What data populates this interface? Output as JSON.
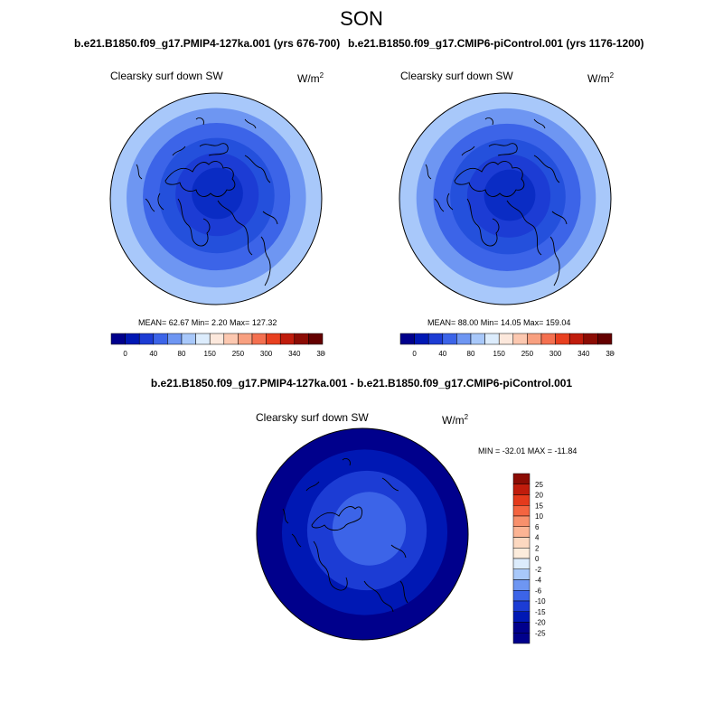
{
  "season": "SON",
  "variable": "Clearsky surf down SW",
  "units_base": "W/m",
  "units_exp": "2",
  "panels": [
    {
      "case": "b.e21.B1850.f09_g17.PMIP4-127ka.001 (yrs 676-700)",
      "stats": "MEAN=  62.67  Min=   2.20  Max= 127.32"
    },
    {
      "case": "b.e21.B1850.f09_g17.CMIP6-piControl.001 (yrs 1176-1200)",
      "stats": "MEAN=  88.00  Min=  14.05  Max= 159.04"
    }
  ],
  "diff": {
    "title": "b.e21.B1850.f09_g17.PMIP4-127ka.001 - b.e21.B1850.f09_g17.CMIP6-piControl.001",
    "stats": "MIN = -32.01 MAX = -11.84"
  },
  "colorbar_main": {
    "labels": [
      "0",
      "40",
      "80",
      "150",
      "250",
      "300",
      "340",
      "380"
    ],
    "colors": [
      "#00008c",
      "#0018b4",
      "#1c3cd4",
      "#3c64e8",
      "#6e96f2",
      "#a8c8fa",
      "#dcecfc",
      "#fce8dc",
      "#fcc8b0",
      "#f8a080",
      "#f47050",
      "#e84020",
      "#c01c0c",
      "#8c0c04",
      "#640000"
    ]
  },
  "colorbar_diff": {
    "labels": [
      "25",
      "20",
      "15",
      "10",
      "6",
      "4",
      "2",
      "0",
      "-2",
      "-4",
      "-6",
      "-10",
      "-15",
      "-20",
      "-25"
    ],
    "colors": [
      "#8c0c04",
      "#c01c0c",
      "#e43a1c",
      "#f46440",
      "#f8906c",
      "#fcb494",
      "#fcd8c0",
      "#fcecdc",
      "#dcecfc",
      "#a8c8fa",
      "#6e96f2",
      "#3c64e8",
      "#1c3cd4",
      "#0018b4",
      "#00008c"
    ]
  },
  "maps": {
    "left": {
      "rings": [
        "#a8c8fa",
        "#6e96f2",
        "#3c64e8",
        "#2450dc",
        "#1c3cd4",
        "#0a2cc4"
      ]
    },
    "right": {
      "rings": [
        "#a8c8fa",
        "#6e96f2",
        "#3c64e8",
        "#2450dc",
        "#1c3cd4",
        "#0a2cc4"
      ]
    },
    "diff": {
      "rings": [
        "#00008c",
        "#0018b4",
        "#1c3cd4",
        "#3c64e8"
      ]
    }
  }
}
